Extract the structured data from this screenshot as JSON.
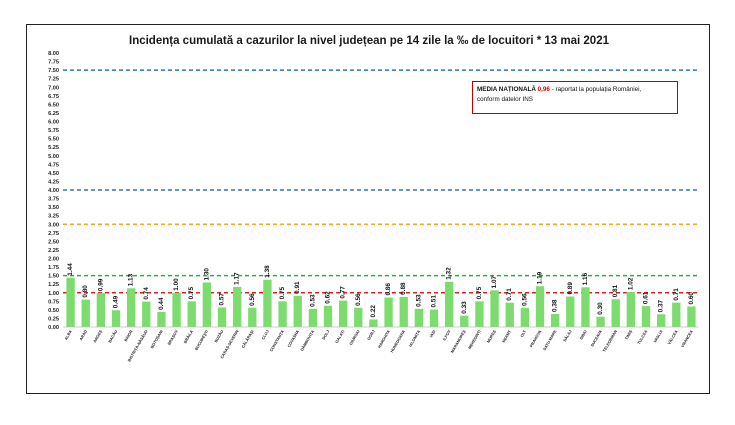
{
  "title": "Incidența cumulată a cazurilor la nivel județean pe 14 zile la ‰ de locuitori * 13 mai 2021",
  "note": {
    "label_bold": "MEDIA NAȚIONALĂ",
    "value": "0,96",
    "text_after": "- raportat la populația României,",
    "line2": "conform datelor INS"
  },
  "colors": {
    "bar": "#7ddc6e",
    "blue_line": "#2e75b6",
    "green_line": "#2eaa4e",
    "orange_line": "#f5a623",
    "red_line": "#e02020"
  },
  "chart_data": {
    "type": "bar",
    "title": "Incidența cumulată a cazurilor la nivel județean pe 14 zile la ‰ de locuitori * 13 mai 2021",
    "ylim": [
      0,
      8
    ],
    "yticks": [
      "0.00",
      "0.25",
      "0.50",
      "0.75",
      "1.00",
      "1.25",
      "1.50",
      "1.75",
      "2.00",
      "2.25",
      "2.50",
      "2.75",
      "3.00",
      "3.25",
      "3.50",
      "3.75",
      "4.00",
      "4.25",
      "4.50",
      "4.75",
      "5.00",
      "5.25",
      "5.50",
      "5.75",
      "6.00",
      "6.25",
      "6.50",
      "6.75",
      "7.00",
      "7.25",
      "7.50",
      "7.75",
      "8.00"
    ],
    "categories": [
      "ALBA",
      "ARAD",
      "ARGEȘ",
      "BACĂU",
      "BIHOR",
      "BISTRIȚA-NĂSĂUD",
      "BOTOȘANI",
      "BRAȘOV",
      "BRĂILA",
      "BUCUREȘTI",
      "BUZĂU",
      "CARAȘ-SEVERIN",
      "CĂLĂRAȘI",
      "CLUJ",
      "CONSTANȚA",
      "COVASNA",
      "DÂMBOVIȚA",
      "DOLJ",
      "GALAȚI",
      "GIURGIU",
      "GORJ",
      "HARGHITA",
      "HUNEDOARA",
      "IALOMIȚA",
      "IAȘI",
      "ILFOV",
      "MARAMUREȘ",
      "MEHEDINȚI",
      "MUREȘ",
      "NEAMȚ",
      "OLT",
      "PRAHOVA",
      "SATU MARE",
      "SĂLAJ",
      "SIBIU",
      "SUCEAVA",
      "TELEORMAN",
      "TIMIȘ",
      "TULCEA",
      "VASLUI",
      "VÂLCEA",
      "VRANCEA"
    ],
    "values": [
      1.44,
      0.8,
      0.99,
      0.49,
      1.13,
      0.74,
      0.44,
      1.0,
      0.75,
      1.3,
      0.57,
      1.17,
      0.56,
      1.38,
      0.75,
      0.91,
      0.53,
      0.62,
      0.77,
      0.56,
      0.22,
      0.86,
      0.88,
      0.53,
      0.51,
      1.32,
      0.33,
      0.75,
      1.07,
      0.71,
      0.56,
      1.19,
      0.38,
      0.89,
      1.16,
      0.3,
      0.81,
      1.02,
      0.61,
      0.37,
      0.71,
      0.6
    ],
    "value_labels": [
      "1.44",
      "0.80",
      "0.99",
      "0.49",
      "1.13",
      "0.74",
      "0.44",
      "1.00",
      "0.75",
      "1.30",
      "0.57",
      "1.17",
      "0.56",
      "1.38",
      "0.75",
      "0.91",
      "0.53",
      "0.62",
      "0.77",
      "0.56",
      "0.22",
      "0.86",
      "0.88",
      "0.53",
      "0.51",
      "1.32",
      "0.33",
      "0.75",
      "1.07",
      "0.71",
      "0.56",
      "1.19",
      "0.38",
      "0.89",
      "1.16",
      "0.30",
      "0.81",
      "1.02",
      "0.61",
      "0.37",
      "0.71",
      "0.60"
    ],
    "reference_lines": [
      {
        "value": 7.5,
        "color": "#2e75b6"
      },
      {
        "value": 4.0,
        "color": "#2e75b6"
      },
      {
        "value": 3.0,
        "color": "#f5a623"
      },
      {
        "value": 1.5,
        "color": "#2eaa4e"
      },
      {
        "value": 1.0,
        "color": "#e02020"
      }
    ],
    "grid": false,
    "legend": "none"
  }
}
